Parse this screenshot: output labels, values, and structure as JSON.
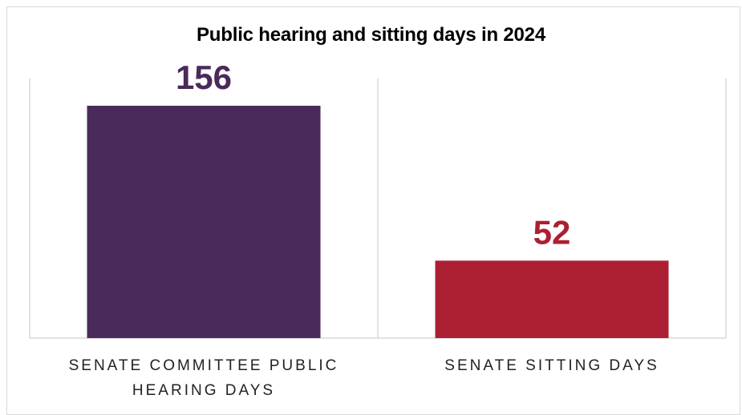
{
  "chart_data": {
    "type": "bar",
    "title": "Public hearing and sitting days in 2024",
    "categories": [
      [
        "SENATE COMMITTEE PUBLIC",
        "HEARING DAYS"
      ],
      [
        "SENATE SITTING DAYS"
      ]
    ],
    "values": [
      156,
      52
    ],
    "data_labels": [
      "156",
      "52"
    ],
    "colors": [
      "#4a2a5b",
      "#ac1f33"
    ],
    "ylim": [
      0,
      180
    ],
    "grid": false,
    "legend": "none"
  }
}
